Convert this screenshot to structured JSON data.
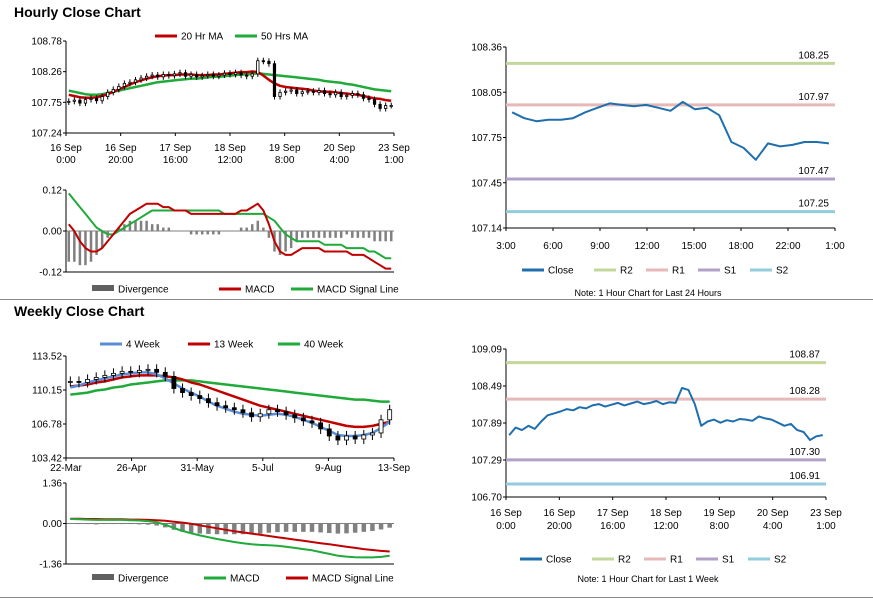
{
  "sections": {
    "hourly_title": "Hourly Close Chart",
    "weekly_title": "Weekly Close Chart"
  },
  "colors": {
    "ma_short": "#c00000",
    "ma_long": "#1faa3a",
    "ma_4w": "#5b8dd6",
    "close": "#1f6fae",
    "r2": "#c4d79b",
    "r1": "#e6b9b8",
    "s1": "#b1a0c7",
    "s2": "#93cddd",
    "divergence": "#808080",
    "candle": "#000000"
  },
  "chart_data": [
    {
      "id": "hourly_price",
      "type": "candlestick",
      "legend": [
        "20 Hr MA",
        "50 Hrs MA"
      ],
      "yticks": [
        "108.78",
        "108.26",
        "107.75",
        "107.24"
      ],
      "ylim": [
        107.24,
        108.78
      ],
      "xticks": [
        [
          "16 Sep",
          "0:00"
        ],
        [
          "16 Sep",
          "20:00"
        ],
        [
          "17 Sep",
          "16:00"
        ],
        [
          "18 Sep",
          "12:00"
        ],
        [
          "19 Sep",
          "8:00"
        ],
        [
          "20 Sep",
          "4:00"
        ],
        [
          "23 Sep",
          "1:00"
        ]
      ],
      "close": [
        107.77,
        107.79,
        107.74,
        107.8,
        107.82,
        107.78,
        107.85,
        107.92,
        107.97,
        108.02,
        108.07,
        108.09,
        108.13,
        108.16,
        108.19,
        108.21,
        108.18,
        108.22,
        108.2,
        108.23,
        108.25,
        108.19,
        108.22,
        108.18,
        108.2,
        108.22,
        108.19,
        108.21,
        108.24,
        108.22,
        108.25,
        108.21,
        108.19,
        108.23,
        108.45,
        108.44,
        108.4,
        107.85,
        107.92,
        107.94,
        107.96,
        107.9,
        107.93,
        107.94,
        107.92,
        107.95,
        107.9,
        107.88,
        107.92,
        107.85,
        107.87,
        107.9,
        107.88,
        107.82,
        107.8,
        107.72,
        107.65,
        107.7,
        107.7
      ],
      "ma20": [
        107.88,
        107.86,
        107.84,
        107.83,
        107.83,
        107.84,
        107.86,
        107.89,
        107.93,
        107.97,
        108.01,
        108.05,
        108.09,
        108.12,
        108.15,
        108.17,
        108.19,
        108.2,
        108.21,
        108.21,
        108.22,
        108.22,
        108.22,
        108.21,
        108.21,
        108.21,
        108.22,
        108.22,
        108.23,
        108.24,
        108.25,
        108.26,
        108.26,
        108.27,
        108.26,
        108.2,
        108.13,
        108.07,
        108.03,
        108.01,
        108.0,
        107.99,
        107.98,
        107.97,
        107.95,
        107.94,
        107.93,
        107.93,
        107.92,
        107.91,
        107.9,
        107.89,
        107.88,
        107.86,
        107.84,
        107.82,
        107.81,
        107.79,
        107.78
      ],
      "ma50": [
        107.95,
        107.93,
        107.91,
        107.89,
        107.88,
        107.88,
        107.89,
        107.91,
        107.93,
        107.95,
        107.97,
        107.99,
        108.01,
        108.03,
        108.05,
        108.07,
        108.09,
        108.1,
        108.11,
        108.12,
        108.13,
        108.14,
        108.15,
        108.15,
        108.16,
        108.17,
        108.18,
        108.18,
        108.19,
        108.2,
        108.21,
        108.22,
        108.22,
        108.23,
        108.24,
        108.23,
        108.22,
        108.21,
        108.2,
        108.19,
        108.18,
        108.17,
        108.16,
        108.15,
        108.14,
        108.13,
        108.11,
        108.1,
        108.09,
        108.08,
        108.06,
        108.05,
        108.03,
        108.01,
        107.99,
        107.97,
        107.96,
        107.95,
        107.94
      ]
    },
    {
      "id": "hourly_macd",
      "type": "macd",
      "legend": [
        "Divergence",
        "MACD",
        "MACD Signal Line"
      ],
      "yticks": [
        "0.12",
        "0.00",
        "-0.12"
      ],
      "ylim": [
        -0.12,
        0.12
      ],
      "macd": [
        0.02,
        0.0,
        -0.03,
        -0.05,
        -0.06,
        -0.06,
        -0.05,
        -0.03,
        -0.01,
        0.01,
        0.03,
        0.05,
        0.06,
        0.07,
        0.08,
        0.08,
        0.08,
        0.07,
        0.07,
        0.06,
        0.06,
        0.06,
        0.05,
        0.05,
        0.05,
        0.05,
        0.05,
        0.05,
        0.05,
        0.05,
        0.05,
        0.06,
        0.06,
        0.07,
        0.08,
        0.06,
        0.02,
        -0.03,
        -0.06,
        -0.07,
        -0.07,
        -0.06,
        -0.05,
        -0.05,
        -0.05,
        -0.05,
        -0.06,
        -0.06,
        -0.06,
        -0.06,
        -0.06,
        -0.07,
        -0.07,
        -0.07,
        -0.08,
        -0.09,
        -0.1,
        -0.11,
        -0.11
      ],
      "signal": [
        0.11,
        0.09,
        0.07,
        0.05,
        0.03,
        0.01,
        0.0,
        -0.01,
        -0.01,
        0.0,
        0.01,
        0.02,
        0.03,
        0.04,
        0.05,
        0.06,
        0.06,
        0.06,
        0.06,
        0.06,
        0.06,
        0.06,
        0.06,
        0.06,
        0.06,
        0.06,
        0.06,
        0.06,
        0.05,
        0.05,
        0.05,
        0.05,
        0.05,
        0.05,
        0.05,
        0.05,
        0.04,
        0.03,
        0.01,
        -0.01,
        -0.02,
        -0.03,
        -0.03,
        -0.03,
        -0.03,
        -0.03,
        -0.04,
        -0.04,
        -0.04,
        -0.04,
        -0.05,
        -0.05,
        -0.05,
        -0.05,
        -0.06,
        -0.06,
        -0.07,
        -0.08,
        -0.08
      ]
    },
    {
      "id": "hourly_24h",
      "type": "line",
      "legend": [
        "Close",
        "R2",
        "R1",
        "S1",
        "S2"
      ],
      "note": "Note: 1 Hour Chart for Last 24 Hours",
      "yticks": [
        "108.36",
        "108.05",
        "107.75",
        "107.45",
        "107.14"
      ],
      "ylim": [
        107.14,
        108.36
      ],
      "xticks": [
        "3:00",
        "6:00",
        "9:00",
        "12:00",
        "15:00",
        "18:00",
        "22:00",
        "1:00"
      ],
      "levels": {
        "R2": "108.25",
        "R1": "107.97",
        "S1": "107.47",
        "S2": "107.25"
      },
      "level_values": {
        "R2": 108.25,
        "R1": 107.97,
        "S1": 107.47,
        "S2": 107.25
      },
      "close": [
        107.92,
        107.88,
        107.86,
        107.87,
        107.87,
        107.88,
        107.92,
        107.95,
        107.98,
        107.97,
        107.96,
        107.97,
        107.95,
        107.93,
        107.99,
        107.94,
        107.95,
        107.9,
        107.72,
        107.68,
        107.6,
        107.71,
        107.69,
        107.7,
        107.72,
        107.72,
        107.71
      ]
    },
    {
      "id": "weekly_price",
      "type": "candlestick",
      "legend": [
        "4 Week",
        "13 Week",
        "40 Week"
      ],
      "yticks": [
        "113.52",
        "110.15",
        "106.78",
        "103.42"
      ],
      "ylim": [
        103.42,
        113.52
      ],
      "xticks": [
        "22-Mar",
        "26-Apr",
        "31-May",
        "5-Jul",
        "9-Aug",
        "13-Sep"
      ],
      "close": [
        111.0,
        110.9,
        111.2,
        111.4,
        111.6,
        111.8,
        112.0,
        111.9,
        112.1,
        112.2,
        111.9,
        111.5,
        110.3,
        109.9,
        109.6,
        109.3,
        108.9,
        108.6,
        108.4,
        108.2,
        107.9,
        107.5,
        107.8,
        108.2,
        108.0,
        107.7,
        107.4,
        107.1,
        106.9,
        106.3,
        105.6,
        105.2,
        105.6,
        105.3,
        105.7,
        105.9,
        107.2,
        108.2
      ],
      "ma4": [
        110.4,
        110.6,
        110.9,
        111.1,
        111.3,
        111.5,
        111.7,
        111.8,
        111.9,
        111.9,
        111.7,
        111.3,
        110.8,
        110.3,
        109.9,
        109.5,
        109.0,
        108.6,
        108.3,
        108.0,
        107.8,
        107.7,
        107.6,
        107.7,
        107.8,
        107.7,
        107.5,
        107.2,
        106.9,
        106.5,
        106.1,
        105.7,
        105.6,
        105.6,
        105.7,
        105.9,
        106.4,
        107.0
      ],
      "ma13": [
        110.5,
        110.6,
        110.7,
        110.9,
        111.0,
        111.2,
        111.4,
        111.5,
        111.6,
        111.6,
        111.6,
        111.5,
        111.4,
        111.2,
        110.9,
        110.7,
        110.4,
        110.1,
        109.8,
        109.5,
        109.2,
        108.9,
        108.6,
        108.4,
        108.2,
        108.0,
        107.8,
        107.6,
        107.4,
        107.2,
        107.0,
        106.8,
        106.6,
        106.5,
        106.5,
        106.6,
        106.8,
        107.0
      ],
      "ma40": [
        109.7,
        109.8,
        109.9,
        110.1,
        110.2,
        110.4,
        110.5,
        110.7,
        110.8,
        110.9,
        111.0,
        111.1,
        111.1,
        111.1,
        111.1,
        111.0,
        110.9,
        110.8,
        110.7,
        110.6,
        110.5,
        110.4,
        110.3,
        110.2,
        110.1,
        110.0,
        109.9,
        109.8,
        109.7,
        109.6,
        109.5,
        109.4,
        109.3,
        109.2,
        109.2,
        109.1,
        109.0,
        109.0
      ]
    },
    {
      "id": "weekly_macd",
      "type": "macd",
      "legend": [
        "Divergence",
        "MACD",
        "MACD Signal Line"
      ],
      "yticks": [
        "1.36",
        "0.00",
        "-1.36"
      ],
      "ylim": [
        -1.36,
        1.36
      ],
      "macd": [
        0.15,
        0.14,
        0.13,
        0.12,
        0.12,
        0.12,
        0.12,
        0.11,
        0.1,
        0.08,
        0.04,
        -0.04,
        -0.15,
        -0.25,
        -0.33,
        -0.4,
        -0.46,
        -0.52,
        -0.57,
        -0.62,
        -0.66,
        -0.7,
        -0.72,
        -0.73,
        -0.75,
        -0.78,
        -0.82,
        -0.86,
        -0.9,
        -0.96,
        -1.02,
        -1.08,
        -1.11,
        -1.13,
        -1.14,
        -1.14,
        -1.12,
        -1.08
      ],
      "signal": [
        0.16,
        0.16,
        0.15,
        0.15,
        0.14,
        0.14,
        0.14,
        0.13,
        0.13,
        0.12,
        0.11,
        0.09,
        0.06,
        0.03,
        -0.01,
        -0.06,
        -0.11,
        -0.16,
        -0.21,
        -0.26,
        -0.3,
        -0.34,
        -0.38,
        -0.42,
        -0.46,
        -0.5,
        -0.54,
        -0.58,
        -0.62,
        -0.66,
        -0.7,
        -0.74,
        -0.78,
        -0.82,
        -0.86,
        -0.89,
        -0.92,
        -0.94
      ]
    },
    {
      "id": "weekly_1w",
      "type": "line",
      "legend": [
        "Close",
        "R2",
        "R1",
        "S1",
        "S2"
      ],
      "note": "Note: 1 Hour Chart for Last 1 Week",
      "yticks": [
        "109.09",
        "108.49",
        "107.89",
        "107.29",
        "106.70"
      ],
      "ylim": [
        106.7,
        109.09
      ],
      "xticks": [
        [
          "16 Sep",
          "0:00"
        ],
        [
          "16 Sep",
          "20:00"
        ],
        [
          "17 Sep",
          "16:00"
        ],
        [
          "18 Sep",
          "12:00"
        ],
        [
          "19 Sep",
          "8:00"
        ],
        [
          "20 Sep",
          "4:00"
        ],
        [
          "23 Sep",
          "1:00"
        ]
      ],
      "levels": {
        "R2": "108.87",
        "R1": "108.28",
        "S1": "107.30",
        "S2": "106.91"
      },
      "level_values": {
        "R2": 108.87,
        "R1": 108.28,
        "S1": 107.3,
        "S2": 106.91
      },
      "close": [
        107.7,
        107.82,
        107.78,
        107.85,
        107.8,
        107.92,
        108.02,
        108.05,
        108.08,
        108.12,
        108.1,
        108.15,
        108.13,
        108.18,
        108.2,
        108.16,
        108.19,
        108.22,
        108.18,
        108.21,
        108.24,
        108.2,
        108.22,
        108.25,
        108.2,
        108.23,
        108.22,
        108.46,
        108.43,
        108.2,
        107.85,
        107.92,
        107.95,
        107.9,
        107.94,
        107.92,
        107.96,
        107.95,
        107.93,
        108.0,
        107.97,
        107.95,
        107.9,
        107.85,
        107.88,
        107.78,
        107.75,
        107.62,
        107.68,
        107.7
      ]
    }
  ]
}
